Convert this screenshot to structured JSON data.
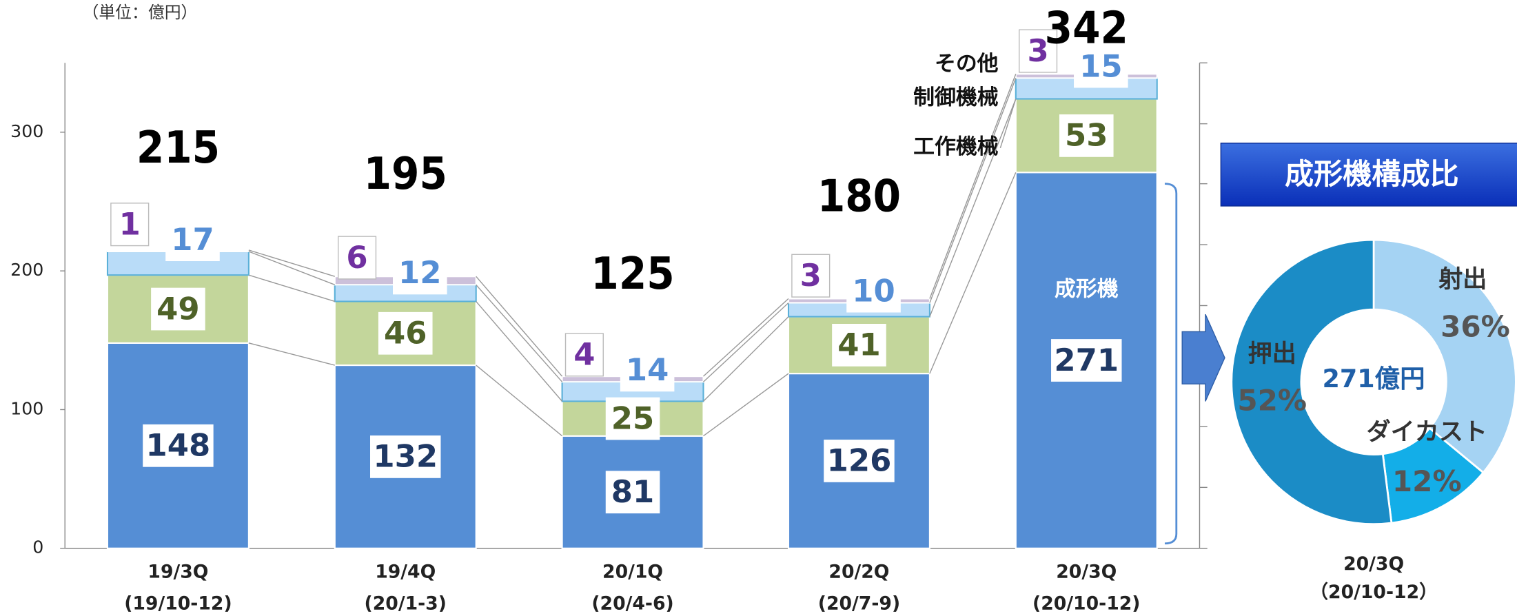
{
  "chart_data": [
    {
      "type": "stacked-bar",
      "unit": "（単位：億円）",
      "categories": [
        "19/3Q",
        "19/4Q",
        "20/1Q",
        "20/2Q",
        "20/3Q"
      ],
      "periods": [
        "(19/10-12)",
        "(20/1-3)",
        "(20/4-6)",
        "(20/7-9)",
        "(20/10-12)"
      ],
      "series": [
        {
          "name": "成形機",
          "color": "#558ed5",
          "label_color": "#1f3864",
          "values": [
            148,
            132,
            81,
            126,
            271
          ]
        },
        {
          "name": "工作機械",
          "color": "#c3d69b",
          "label_color": "#4f6228",
          "values": [
            49,
            46,
            25,
            41,
            53
          ]
        },
        {
          "name": "制御機械",
          "color": "#b9dcf8",
          "label_color": "#558ed5",
          "values": [
            17,
            12,
            14,
            10,
            15
          ]
        },
        {
          "name": "その他",
          "color": "#ccc0da",
          "label_color": "#7030a0",
          "values": [
            1,
            6,
            4,
            3,
            3
          ]
        }
      ],
      "totals": [
        215,
        195,
        125,
        180,
        342
      ],
      "ylim": [
        0,
        350
      ],
      "yticks": [
        0,
        100,
        200,
        300
      ]
    },
    {
      "type": "donut",
      "title": "成形機構成比",
      "center_label": "271億円",
      "categories": [
        "射出",
        "ダイカスト",
        "押出"
      ],
      "values": [
        36,
        12,
        52
      ],
      "value_labels": [
        "36%",
        "12%",
        "52%"
      ],
      "colors": [
        "#a5d3f3",
        "#13aee8",
        "#1b8cc6"
      ],
      "footer": [
        "20/3Q",
        "（20/10-12）"
      ]
    }
  ]
}
